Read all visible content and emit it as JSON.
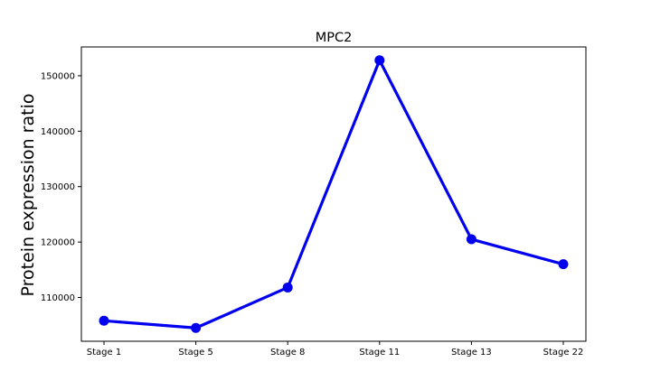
{
  "chart_data": {
    "type": "line",
    "title": "MPC2",
    "xlabel": "",
    "ylabel": "Protein expression ratio",
    "categories": [
      "Stage 1",
      "Stage 5",
      "Stage 8",
      "Stage 11",
      "Stage 13",
      "Stage 22"
    ],
    "series": [
      {
        "values": [
          105800,
          104500,
          111800,
          152800,
          120500,
          116000
        ],
        "color": "#0000ee",
        "marker": "circle"
      }
    ],
    "yticks": [
      110000,
      120000,
      130000,
      140000,
      150000
    ],
    "ytick_labels": [
      "110000",
      "120000",
      "130000",
      "140000",
      "150000"
    ],
    "ylim": [
      102100,
      155200
    ],
    "grid": false,
    "legend": false
  }
}
